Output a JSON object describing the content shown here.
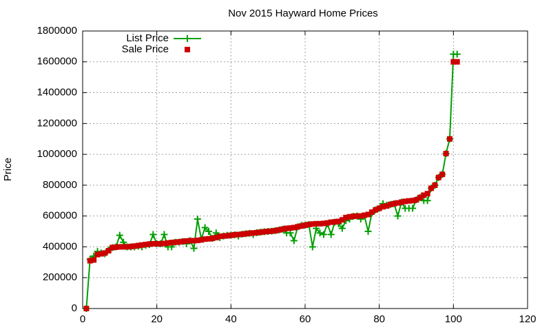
{
  "chart_data": {
    "type": "line",
    "title": "Nov 2015 Hayward Home Prices",
    "y_label": "Price",
    "x": [
      1,
      2,
      3,
      4,
      5,
      6,
      7,
      8,
      9,
      10,
      11,
      12,
      13,
      14,
      15,
      16,
      17,
      18,
      19,
      20,
      21,
      22,
      23,
      24,
      25,
      26,
      27,
      28,
      29,
      30,
      31,
      32,
      33,
      34,
      35,
      36,
      37,
      38,
      39,
      40,
      41,
      42,
      43,
      44,
      45,
      46,
      47,
      48,
      49,
      50,
      51,
      52,
      53,
      54,
      55,
      56,
      57,
      58,
      59,
      60,
      61,
      62,
      63,
      64,
      65,
      66,
      67,
      68,
      69,
      70,
      71,
      72,
      73,
      74,
      75,
      76,
      77,
      78,
      79,
      80,
      81,
      82,
      83,
      84,
      85,
      86,
      87,
      88,
      89,
      90,
      91,
      92,
      93,
      94,
      95,
      96,
      97,
      98,
      99,
      100,
      101
    ],
    "series": [
      {
        "name": "List Price",
        "color": "#009e00",
        "style": "linespoints",
        "values": [
          0,
          320000,
          340000,
          370000,
          360000,
          355000,
          380000,
          395000,
          400000,
          475000,
          430000,
          400000,
          400000,
          400000,
          405000,
          400000,
          410000,
          415000,
          480000,
          420000,
          420000,
          480000,
          400000,
          400000,
          430000,
          430000,
          435000,
          420000,
          440000,
          390000,
          580000,
          450000,
          525000,
          500000,
          455000,
          490000,
          460000,
          470000,
          475000,
          475000,
          478000,
          470000,
          482000,
          485000,
          488000,
          480000,
          492000,
          495000,
          498000,
          500000,
          502000,
          505000,
          510000,
          515000,
          490000,
          490000,
          440000,
          530000,
          540000,
          540000,
          545000,
          400000,
          520000,
          490000,
          480000,
          550000,
          480000,
          560000,
          550000,
          520000,
          570000,
          580000,
          598000,
          600000,
          580000,
          600000,
          500000,
          620000,
          640000,
          650000,
          680000,
          670000,
          675000,
          680000,
          600000,
          690000,
          650000,
          650000,
          650000,
          705000,
          720000,
          700000,
          700000,
          780000,
          800000,
          850000,
          870000,
          1005000,
          1100000,
          1650000,
          1650000
        ]
      },
      {
        "name": "Sale Price",
        "color": "#cc0000",
        "style": "points",
        "values": [
          0,
          310000,
          315000,
          350000,
          355000,
          360000,
          375000,
          395000,
          398000,
          400000,
          400000,
          400000,
          402000,
          405000,
          408000,
          412000,
          415000,
          418000,
          420000,
          420000,
          420000,
          422000,
          425000,
          428000,
          430000,
          432000,
          435000,
          438000,
          440000,
          440000,
          442000,
          445000,
          450000,
          452000,
          455000,
          460000,
          468000,
          470000,
          472000,
          475000,
          478000,
          480000,
          482000,
          485000,
          488000,
          490000,
          492000,
          495000,
          498000,
          500000,
          502000,
          505000,
          510000,
          515000,
          520000,
          522000,
          525000,
          530000,
          535000,
          540000,
          545000,
          548000,
          550000,
          550000,
          552000,
          555000,
          560000,
          562000,
          565000,
          575000,
          590000,
          595000,
          598000,
          600000,
          600000,
          605000,
          610000,
          625000,
          640000,
          650000,
          660000,
          665000,
          675000,
          680000,
          685000,
          690000,
          695000,
          698000,
          700000,
          705000,
          720000,
          735000,
          745000,
          780000,
          800000,
          850000,
          870000,
          1005000,
          1100000,
          1600000,
          1600000
        ]
      }
    ],
    "xlim": [
      0,
      120
    ],
    "xticks": [
      0,
      20,
      40,
      60,
      80,
      100,
      120
    ],
    "ylim": [
      0,
      1800000
    ],
    "yticks": [
      0,
      200000,
      400000,
      600000,
      800000,
      1000000,
      1200000,
      1400000,
      1600000,
      1800000
    ],
    "grid": true,
    "legend": "top-left"
  }
}
